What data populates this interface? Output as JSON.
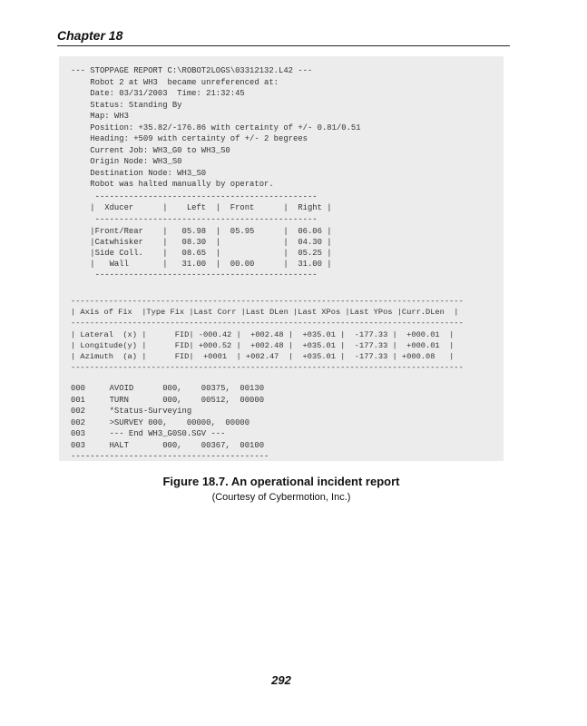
{
  "header": {
    "chapter": "Chapter 18"
  },
  "report": [
    "--- STOPPAGE REPORT C:\\ROBOT2LOGS\\03312132.L42 ---",
    "    Robot 2 at WH3  became unreferenced at:",
    "    Date: 03/31/2003  Time: 21:32:45",
    "    Status: Standing By",
    "    Map: WH3",
    "    Position: +35.82/-176.86 with certainty of +/- 0.81/0.51",
    "    Heading: +509 with certainty of +/- 2 begrees",
    "    Current Job: WH3_G0 to WH3_S0",
    "    Origin Node: WH3_S0",
    "    Destination Node: WH3_S0",
    "    Robot was halted manually by operator."
  ],
  "xducer_table": [
    "     ----------------------------------------------",
    "    |  Xducer      |    Left  |  Front      |  Right |",
    "     ----------------------------------------------",
    "    |Front/Rear    |   05.98  |  05.95      |  06.06 |",
    "    |Catwhisker    |   08.30  |             |  04.30 |",
    "    |Side Coll.    |   08.65  |             |  05.25 |",
    "    |   Wall       |   31.00  |  00.00      |  31.00 |",
    "     ----------------------------------------------"
  ],
  "fix_table": [
    "-----------------------------------------------------------------------------------",
    "| Axis of Fix  |Type Fix |Last Corr |Last DLen |Last XPos |Last YPos |Curr.DLen  |",
    "-----------------------------------------------------------------------------------",
    "| Lateral  (x) |      FID| -000.42 |  +002.48 |  +035.01 |  -177.33 |  +000.01  |",
    "| Longitude(y) |      FID| +000.52 |  +002.48 |  +035.01 |  -177.33 |  +000.01  |",
    "| Azimuth  (a) |      FID|  +0001  | +002.47  |  +035.01 |  -177.33 | +000.08   |",
    "-----------------------------------------------------------------------------------"
  ],
  "log": [
    "000     AVOID      000,    00375,  00130",
    "001     TURN       000,    00512,  00000",
    "002     *Status-Surveying",
    "002     >SURVEY 000,    00000,  00000",
    "003     --- End WH3_G0S0.SGV ---",
    "003     HALT       000,    00367,  00100",
    "-----------------------------------------"
  ],
  "caption": {
    "title": "Figure 18.7. An operational incident report",
    "credit": "(Courtesy of Cybermotion, Inc.)"
  },
  "page_number": "292"
}
